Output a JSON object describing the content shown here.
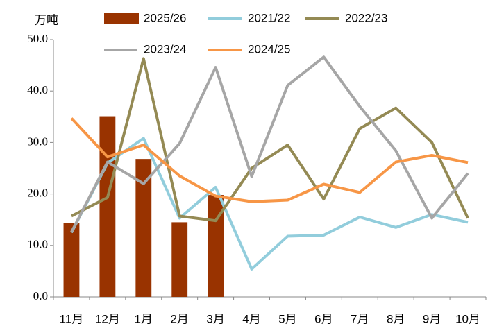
{
  "chart_data": {
    "type": "combo",
    "y_label": "万吨",
    "categories": [
      "11月",
      "12月",
      "1月",
      "2月",
      "3月",
      "4月",
      "5月",
      "6月",
      "7月",
      "8月",
      "9月",
      "10月"
    ],
    "ylim": [
      0,
      50
    ],
    "yticks": [
      {
        "value": 0,
        "label": "0.0"
      },
      {
        "value": 10,
        "label": "10.0"
      },
      {
        "value": 20,
        "label": "20.0"
      },
      {
        "value": 30,
        "label": "30.0"
      },
      {
        "value": 40,
        "label": "40.0"
      },
      {
        "value": 50,
        "label": "50.0"
      }
    ],
    "grid": false,
    "series": [
      {
        "name": "2025/26",
        "type": "bar",
        "color": "#993300",
        "values": [
          14.3,
          35.1,
          26.8,
          14.5,
          19.8,
          null,
          null,
          null,
          null,
          null,
          null,
          null
        ]
      },
      {
        "name": "2021/22",
        "type": "line",
        "color": "#92cddc",
        "values": [
          12.5,
          26,
          30.8,
          15.3,
          21.3,
          5.4,
          11.8,
          12,
          15.5,
          13.5,
          16,
          14.5
        ]
      },
      {
        "name": "2022/23",
        "type": "line",
        "color": "#948a54",
        "values": [
          15.7,
          19.3,
          46.3,
          15.7,
          14.8,
          25,
          29.5,
          19,
          32.7,
          36.7,
          30,
          15.3
        ]
      },
      {
        "name": "2023/24",
        "type": "line",
        "color": "#a6a6a6",
        "values": [
          12.6,
          26.2,
          22,
          29.8,
          44.6,
          23.4,
          41.1,
          46.6,
          37,
          28.4,
          15.3,
          24
        ]
      },
      {
        "name": "2024/25",
        "type": "line",
        "color": "#f79646",
        "values": [
          34.7,
          27.2,
          29.5,
          23.5,
          19.6,
          18.5,
          18.8,
          21.9,
          20.3,
          26.2,
          27.5,
          26.1
        ]
      }
    ]
  }
}
